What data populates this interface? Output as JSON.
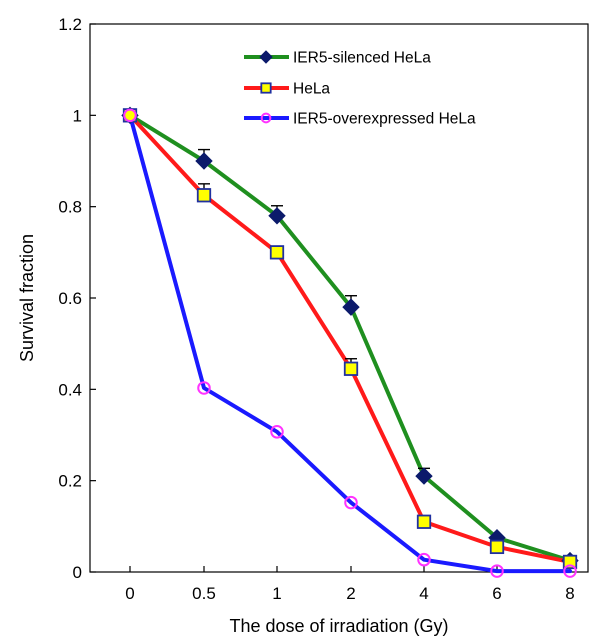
{
  "chart_data": {
    "type": "line",
    "title": "",
    "xlabel": "The dose of irradiation (Gy)",
    "ylabel": "Survival fraction",
    "categories": [
      "0",
      "0.5",
      "1",
      "2",
      "4",
      "6",
      "8"
    ],
    "ylim": [
      0,
      1.2
    ],
    "yticks": [
      "0",
      "0.2",
      "0.4",
      "0.6",
      "0.8",
      "1",
      "1.2"
    ],
    "grid": false,
    "legend_position": "top-right",
    "series": [
      {
        "name": "IER5-silenced HeLa",
        "values": [
          1.0,
          0.9,
          0.78,
          0.58,
          0.21,
          0.075,
          0.025
        ],
        "errors": [
          0,
          0.025,
          0.022,
          0.025,
          0.017,
          0,
          0
        ],
        "line_color": "#1f8f1f",
        "marker": "diamond",
        "marker_fill": "#0b1a6b",
        "marker_edge": "#0b1a6b"
      },
      {
        "name": "HeLa",
        "values": [
          1.0,
          0.825,
          0.7,
          0.445,
          0.11,
          0.055,
          0.022
        ],
        "errors": [
          0,
          0.025,
          0,
          0.022,
          0,
          0,
          0
        ],
        "line_color": "#ff1a1a",
        "marker": "square",
        "marker_fill": "#ffff00",
        "marker_edge": "#2030a0"
      },
      {
        "name": "IER5-overexpressed HeLa",
        "values": [
          1.0,
          0.403,
          0.307,
          0.152,
          0.027,
          0.002,
          0.002
        ],
        "errors": [
          0,
          0,
          0,
          0,
          0,
          0,
          0
        ],
        "line_color": "#1a1aff",
        "marker": "circle",
        "marker_fill": "none",
        "marker_edge": "#ff33ff"
      }
    ]
  }
}
